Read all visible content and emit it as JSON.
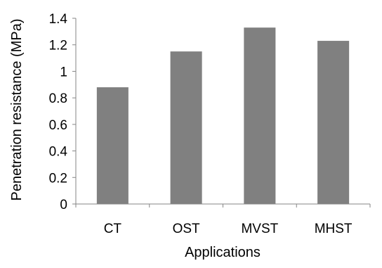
{
  "chart_data": {
    "type": "bar",
    "categories": [
      "CT",
      "OST",
      "MVST",
      "MHST"
    ],
    "values": [
      0.88,
      1.15,
      1.33,
      1.23
    ],
    "xlabel": "Applications",
    "ylabel": "Penetration resistance (MPa)",
    "ylim": [
      0,
      1.4
    ],
    "yticks": [
      "0",
      "0.2",
      "0.4",
      "0.6",
      "0.8",
      "1",
      "1.2",
      "1.4"
    ],
    "grid": false,
    "legend": "none",
    "bar_color": "#808080",
    "axis_color": "#868686"
  }
}
